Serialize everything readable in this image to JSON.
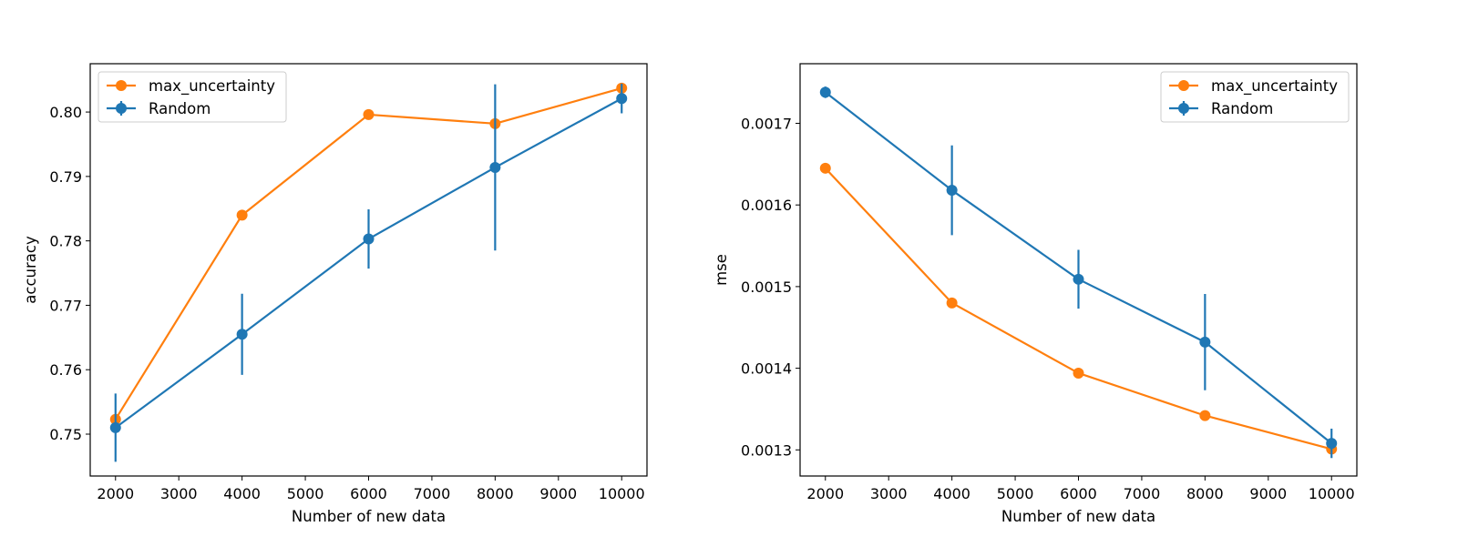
{
  "chart_data": [
    {
      "type": "line",
      "xlabel": "Number of new data",
      "ylabel": "accuracy",
      "x": [
        2000,
        4000,
        6000,
        8000,
        10000
      ],
      "xticks": [
        2000,
        3000,
        4000,
        5000,
        6000,
        7000,
        8000,
        9000,
        10000
      ],
      "xtick_labels": [
        "2000",
        "3000",
        "4000",
        "5000",
        "6000",
        "7000",
        "8000",
        "9000",
        "10000"
      ],
      "xlim": [
        1600,
        10400
      ],
      "ylim": [
        0.7435,
        0.8075
      ],
      "yticks": [
        0.75,
        0.76,
        0.77,
        0.78,
        0.79,
        0.8
      ],
      "ytick_labels": [
        "0.75",
        "0.76",
        "0.77",
        "0.78",
        "0.79",
        "0.80"
      ],
      "legend_position": "upper-left",
      "series": [
        {
          "name": "max_uncertainty",
          "color": "#ff7f0e",
          "values": [
            0.7523,
            0.784,
            0.7996,
            0.7982,
            0.8037
          ]
        },
        {
          "name": "Random",
          "color": "#1f77b4",
          "values": [
            0.751,
            0.7655,
            0.7803,
            0.7914,
            0.8021
          ],
          "errors": [
            0.0053,
            0.0063,
            0.0046,
            0.0129,
            0.0023
          ]
        }
      ]
    },
    {
      "type": "line",
      "xlabel": "Number of new data",
      "ylabel": "mse",
      "x": [
        2000,
        4000,
        6000,
        8000,
        10000
      ],
      "xticks": [
        2000,
        3000,
        4000,
        5000,
        6000,
        7000,
        8000,
        9000,
        10000
      ],
      "xtick_labels": [
        "2000",
        "3000",
        "4000",
        "5000",
        "6000",
        "7000",
        "8000",
        "9000",
        "10000"
      ],
      "xlim": [
        1600,
        10400
      ],
      "ylim": [
        0.001268,
        0.001773
      ],
      "yticks": [
        0.0013,
        0.0014,
        0.0015,
        0.0016,
        0.0017
      ],
      "ytick_labels": [
        "0.0013",
        "0.0014",
        "0.0015",
        "0.0016",
        "0.0017"
      ],
      "legend_position": "upper-right",
      "series": [
        {
          "name": "max_uncertainty",
          "color": "#ff7f0e",
          "values": [
            0.001645,
            0.00148,
            0.001394,
            0.001342,
            0.001301
          ]
        },
        {
          "name": "Random",
          "color": "#1f77b4",
          "values": [
            0.001738,
            0.001618,
            0.001509,
            0.001432,
            0.001308
          ],
          "errors": [
            7e-06,
            5.5e-05,
            3.6e-05,
            5.9e-05,
            1.8e-05
          ]
        }
      ]
    }
  ]
}
